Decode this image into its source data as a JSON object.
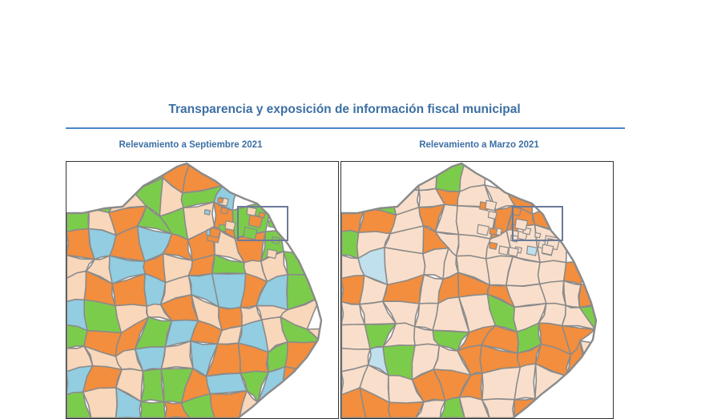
{
  "header": {
    "title": "Transparencia y exposición de información fiscal municipal"
  },
  "maps": [
    {
      "subtitle": "Relevamiento a Septiembre 2021",
      "palette": [
        "#f28e3e",
        "#7ccc4c",
        "#f9d7bb",
        "#92cde1"
      ],
      "weights": [
        0.25,
        0.27,
        0.3,
        0.18
      ],
      "seed": 7
    },
    {
      "subtitle": "Relevamiento a Marzo 2021",
      "palette": [
        "#f9dfcb",
        "#f28e3e",
        "#7ccc4c",
        "#bfe0ec"
      ],
      "weights": [
        0.55,
        0.26,
        0.12,
        0.07
      ],
      "seed": 23
    }
  ],
  "colors": {
    "title": "#3d6fa3",
    "rule": "#4a86c5",
    "border": "#8a8a8a",
    "zoom_box": "#6b7a99"
  }
}
